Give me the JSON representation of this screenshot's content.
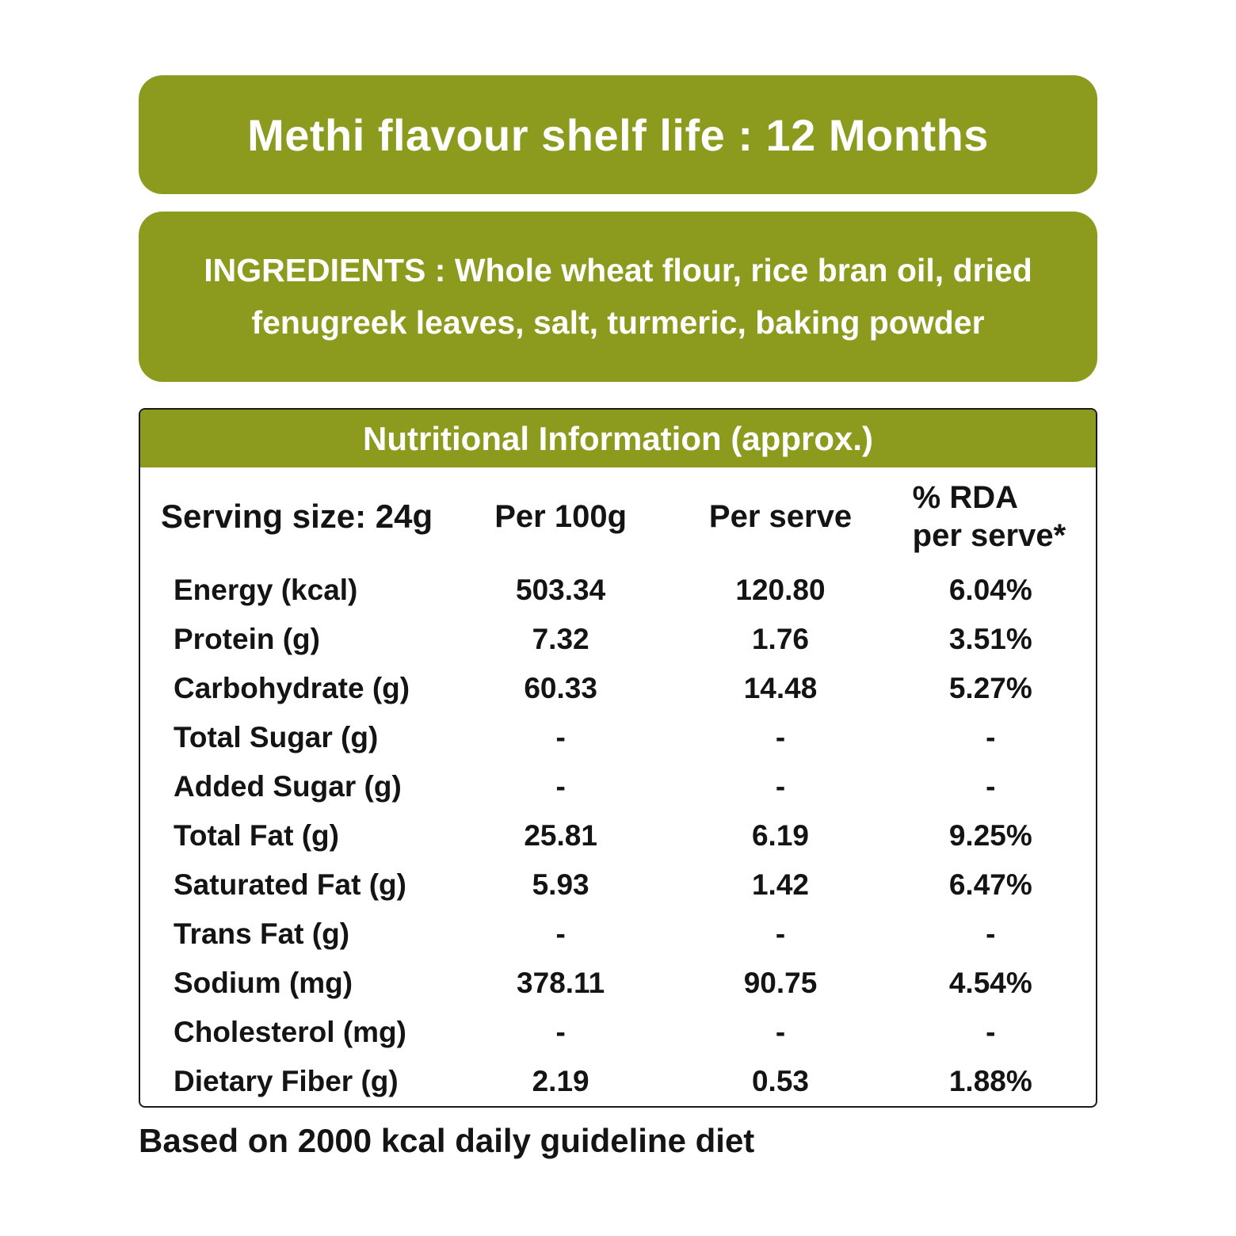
{
  "colors": {
    "banner_green": "#8c9b1e",
    "text_dark": "#141414",
    "text_light": "#ffffff",
    "table_border": "#1a1a1a"
  },
  "banner_shelf_life": {
    "text": "Methi flavour shelf life : 12 Months"
  },
  "banner_ingredients": {
    "text": "INGREDIENTS : Whole wheat flour, rice bran oil, dried\nfenugreek leaves, salt, turmeric, baking powder"
  },
  "nutrition_table": {
    "title": "Nutritional Information (approx.)",
    "columns": {
      "serving": "Serving size: 24g",
      "per_100g": "Per 100g",
      "per_serve": "Per serve",
      "rda_per_serve": "% RDA\nper serve*"
    },
    "rows": [
      {
        "label": "Energy (kcal)",
        "per_100g": "503.34",
        "per_serve": "120.80",
        "rda": "6.04%"
      },
      {
        "label": "Protein (g)",
        "per_100g": "7.32",
        "per_serve": "1.76",
        "rda": "3.51%"
      },
      {
        "label": "Carbohydrate (g)",
        "per_100g": "60.33",
        "per_serve": "14.48",
        "rda": "5.27%"
      },
      {
        "label": "Total Sugar (g)",
        "per_100g": "-",
        "per_serve": "-",
        "rda": "-"
      },
      {
        "label": "Added Sugar (g)",
        "per_100g": "-",
        "per_serve": "-",
        "rda": "-"
      },
      {
        "label": "Total Fat (g)",
        "per_100g": "25.81",
        "per_serve": "6.19",
        "rda": "9.25%"
      },
      {
        "label": "Saturated Fat (g)",
        "per_100g": "5.93",
        "per_serve": "1.42",
        "rda": "6.47%"
      },
      {
        "label": "Trans Fat (g)",
        "per_100g": "-",
        "per_serve": "-",
        "rda": "-"
      },
      {
        "label": "Sodium (mg)",
        "per_100g": "378.11",
        "per_serve": "90.75",
        "rda": "4.54%"
      },
      {
        "label": "Cholesterol (mg)",
        "per_100g": "-",
        "per_serve": "-",
        "rda": "-"
      },
      {
        "label": "Dietary Fiber (g)",
        "per_100g": "2.19",
        "per_serve": "0.53",
        "rda": "1.88%"
      }
    ]
  },
  "footer": {
    "note": "Based on 2000 kcal daily guideline diet"
  }
}
